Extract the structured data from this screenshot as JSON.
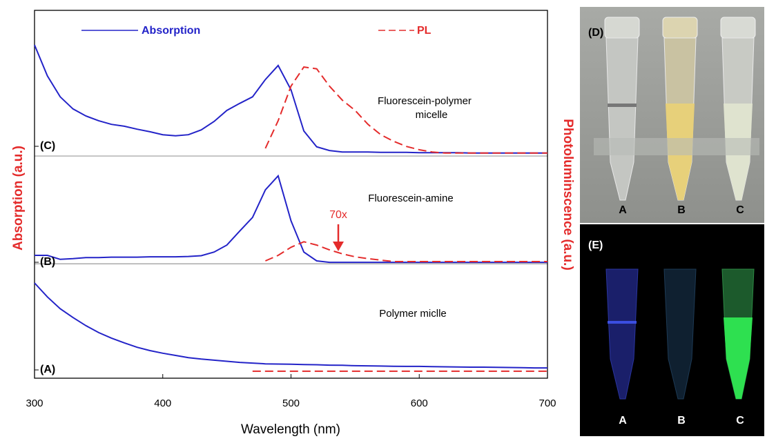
{
  "chart_data": {
    "type": "line",
    "xlabel": "Wavelength (nm)",
    "ylabel": "Absorption (a.u.)",
    "y2label": "Photoluminscence (a.u.)",
    "xlim": [
      300,
      700
    ],
    "xticks": [
      300,
      400,
      500,
      600,
      700
    ],
    "ylim": [
      0,
      100
    ],
    "separators": [
      31.1,
      60.4
    ],
    "legend": [
      {
        "name": "Absorption",
        "color": "#2323c8",
        "dashed": false
      },
      {
        "name": "PL",
        "color": "#e42b2b",
        "dashed": true
      }
    ],
    "x": [
      300,
      310,
      320,
      330,
      340,
      350,
      360,
      370,
      380,
      390,
      400,
      410,
      420,
      430,
      440,
      450,
      460,
      470,
      480,
      490,
      500,
      510,
      520,
      530,
      540,
      550,
      560,
      570,
      580,
      590,
      600,
      610,
      620,
      630,
      640,
      650,
      660,
      670,
      680,
      690,
      700
    ],
    "panels": [
      {
        "label": "(A)",
        "annotation": [
          "Polymer miclle"
        ],
        "absorption": [
          25.9,
          22.1,
          18.9,
          16.5,
          14.3,
          12.4,
          10.9,
          9.6,
          8.4,
          7.5,
          6.8,
          6.2,
          5.6,
          5.2,
          4.9,
          4.6,
          4.3,
          4.1,
          3.9,
          3.85,
          3.8,
          3.7,
          3.65,
          3.55,
          3.5,
          3.4,
          3.35,
          3.3,
          3.25,
          3.2,
          3.2,
          3.15,
          3.1,
          3.05,
          3.0,
          3.0,
          2.95,
          2.9,
          2.85,
          2.8,
          2.8
        ],
        "pl": [
          null,
          null,
          null,
          null,
          null,
          null,
          null,
          null,
          null,
          null,
          null,
          null,
          null,
          null,
          null,
          null,
          null,
          1.9,
          1.9,
          1.9,
          1.9,
          1.9,
          1.9,
          1.9,
          1.9,
          1.9,
          1.9,
          1.9,
          1.9,
          1.9,
          1.9,
          1.9,
          1.9,
          1.9,
          1.9,
          1.9,
          1.9,
          1.9,
          1.9,
          1.9,
          1.9
        ]
      },
      {
        "label": "(B)",
        "annotation": [
          "Fluorescein-amine"
        ],
        "marker": "70x",
        "absorption": [
          33.4,
          33.4,
          32.3,
          32.5,
          32.8,
          32.8,
          32.9,
          32.9,
          32.9,
          33.0,
          33.0,
          33.0,
          33.1,
          33.3,
          34.3,
          36.2,
          40.0,
          43.7,
          51.2,
          55.0,
          42.8,
          34.3,
          31.9,
          31.5,
          31.5,
          31.5,
          31.5,
          31.5,
          31.5,
          31.5,
          31.5,
          31.5,
          31.5,
          31.5,
          31.5,
          31.5,
          31.5,
          31.5,
          31.5,
          31.5,
          31.5
        ],
        "pl": [
          null,
          null,
          null,
          null,
          null,
          null,
          null,
          null,
          null,
          null,
          null,
          null,
          null,
          null,
          null,
          null,
          null,
          null,
          31.9,
          33.4,
          35.6,
          37.1,
          36.2,
          34.9,
          33.8,
          33.0,
          32.5,
          32.1,
          31.7,
          31.7,
          31.7,
          31.7,
          31.7,
          31.7,
          31.7,
          31.7,
          31.7,
          31.7,
          31.7,
          31.7,
          31.7
        ]
      },
      {
        "label": "(C)",
        "annotation": [
          "Fluorescein-polymer",
          "micelle"
        ],
        "absorption": [
          90.6,
          82.2,
          76.5,
          73.2,
          71.3,
          70.0,
          69.0,
          68.5,
          67.7,
          67.0,
          66.2,
          65.9,
          66.2,
          67.5,
          69.8,
          72.8,
          74.7,
          76.5,
          81.2,
          85.0,
          78.4,
          67.2,
          62.9,
          61.9,
          61.5,
          61.5,
          61.5,
          61.4,
          61.4,
          61.4,
          61.3,
          61.3,
          61.3,
          61.3,
          61.2,
          61.2,
          61.2,
          61.2,
          61.2,
          61.2,
          61.2
        ],
        "pl": [
          null,
          null,
          null,
          null,
          null,
          null,
          null,
          null,
          null,
          null,
          null,
          null,
          null,
          null,
          null,
          null,
          null,
          null,
          62.5,
          70.0,
          79.4,
          84.6,
          84.1,
          79.4,
          75.6,
          72.8,
          69.0,
          66.2,
          64.4,
          63.0,
          62.1,
          61.5,
          61.2,
          61.2,
          61.2,
          61.2,
          61.2,
          61.2,
          61.2,
          61.2,
          61.2
        ]
      }
    ]
  },
  "photos": [
    {
      "label": "(D)",
      "tubes": [
        "A",
        "B",
        "C"
      ]
    },
    {
      "label": "(E)",
      "tubes": [
        "A",
        "B",
        "C"
      ]
    }
  ]
}
